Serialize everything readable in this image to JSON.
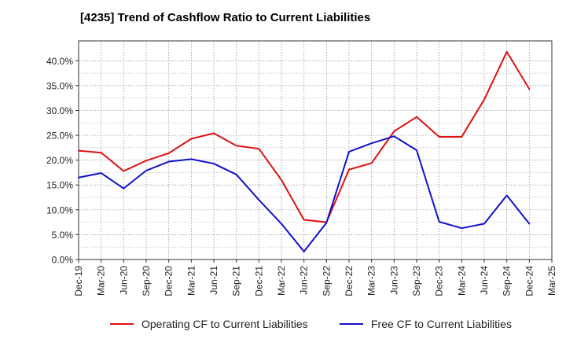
{
  "chart_data": {
    "type": "line",
    "title": "[4235]  Trend of Cashflow Ratio to Current Liabilities",
    "xlabel": "",
    "ylabel": "",
    "ylim": [
      0,
      0.44
    ],
    "ytick_values": [
      0,
      0.05,
      0.1,
      0.15,
      0.2,
      0.25,
      0.3,
      0.35,
      0.4
    ],
    "ytick_labels": [
      "0.0%",
      "5.0%",
      "10.0%",
      "15.0%",
      "20.0%",
      "25.0%",
      "30.0%",
      "35.0%",
      "40.0%"
    ],
    "categories": [
      "Dec-19",
      "Mar-20",
      "Jun-20",
      "Sep-20",
      "Dec-20",
      "Mar-21",
      "Jun-21",
      "Sep-21",
      "Dec-21",
      "Mar-22",
      "Jun-22",
      "Sep-22",
      "Dec-22",
      "Mar-23",
      "Jun-23",
      "Sep-23",
      "Dec-23",
      "Mar-24",
      "Jun-24",
      "Sep-24",
      "Dec-24",
      "Mar-25"
    ],
    "grid": true,
    "legend_position": "bottom",
    "series": [
      {
        "name": "Operating CF to Current Liabilities",
        "color": "#dd1111",
        "values": [
          0.219,
          0.215,
          0.178,
          0.199,
          0.214,
          0.243,
          0.254,
          0.229,
          0.223,
          0.16,
          0.08,
          0.075,
          0.181,
          0.194,
          0.258,
          0.287,
          0.247,
          0.247,
          0.322,
          0.418,
          0.343,
          null
        ]
      },
      {
        "name": "Free CF to Current Liabilities",
        "color": "#1111cc",
        "values": [
          0.165,
          0.174,
          0.143,
          0.179,
          0.197,
          0.202,
          0.193,
          0.171,
          0.12,
          0.072,
          0.016,
          0.074,
          0.217,
          0.234,
          0.248,
          0.22,
          0.076,
          0.063,
          0.072,
          0.129,
          0.072,
          null
        ]
      }
    ]
  }
}
